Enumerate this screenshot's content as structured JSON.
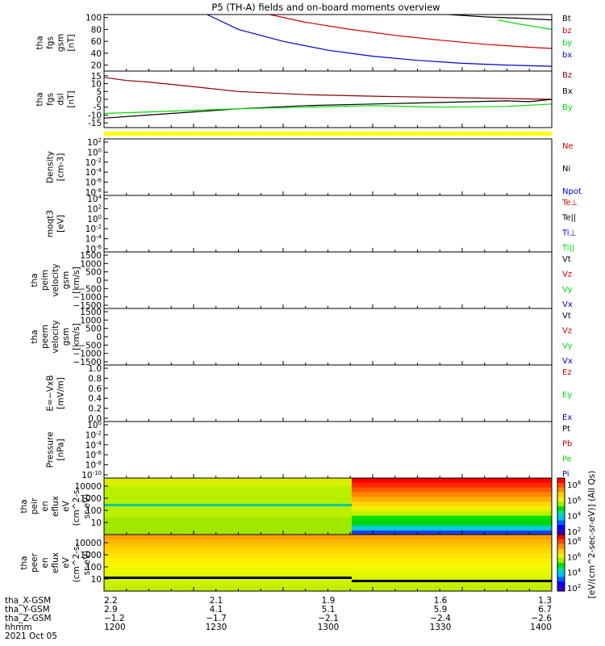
{
  "title": "P5 (TH-A) fields and on-board moments overview",
  "colors": {
    "black": "#000000",
    "red": "#cc0000",
    "green": "#00dd00",
    "blue": "#0000cc",
    "yellow": "#ffff00",
    "darkred": "#8b0000"
  },
  "chart_data": [
    {
      "type": "line",
      "ylabel": [
        "tha",
        "fgs",
        "gsm",
        "[nT]"
      ],
      "ylim": [
        10,
        105
      ],
      "ticks": [
        "20",
        "40",
        "60",
        "80",
        "100"
      ],
      "xlim": [
        0,
        100
      ],
      "series": [
        {
          "name": "Bt",
          "color": "black",
          "x": [
            77,
            85,
            92,
            100
          ],
          "y": [
            105,
            101,
            99,
            96
          ]
        },
        {
          "name": "bz",
          "color": "red",
          "x": [
            37,
            45,
            55,
            65,
            75,
            85,
            95,
            100
          ],
          "y": [
            105,
            92,
            80,
            70,
            62,
            55,
            50,
            48
          ]
        },
        {
          "name": "by",
          "color": "green",
          "x": [
            88,
            92,
            96,
            100
          ],
          "y": [
            96,
            90,
            85,
            80
          ]
        },
        {
          "name": "bx",
          "color": "blue",
          "x": [
            23,
            30,
            40,
            50,
            60,
            70,
            80,
            90,
            100
          ],
          "y": [
            105,
            80,
            60,
            45,
            35,
            28,
            23,
            20,
            18
          ]
        }
      ]
    },
    {
      "type": "line",
      "ylabel": [
        "tha",
        "fgs",
        "dsl",
        "[nT]"
      ],
      "ylim": [
        -18,
        18
      ],
      "ticks": [
        "15",
        "10",
        "5",
        "0",
        "-5",
        "-10",
        "-15"
      ],
      "xlim": [
        0,
        100
      ],
      "series": [
        {
          "name": "Bz",
          "color": "darkred",
          "x": [
            0,
            5,
            10,
            20,
            30,
            45,
            60,
            80,
            90,
            100
          ],
          "y": [
            14,
            12,
            11,
            8,
            5,
            3,
            2,
            1,
            0.5,
            0
          ]
        },
        {
          "name": "Bx",
          "color": "black",
          "x": [
            0,
            10,
            20,
            30,
            45,
            60,
            75,
            90,
            95,
            100
          ],
          "y": [
            -12,
            -10,
            -8,
            -6,
            -4,
            -3,
            -2,
            -1,
            -1.5,
            0
          ]
        },
        {
          "name": "By",
          "color": "green",
          "x": [
            0,
            10,
            20,
            30,
            45,
            60,
            75,
            90,
            100
          ],
          "y": [
            -9,
            -8,
            -7,
            -6,
            -5,
            -4,
            -5,
            -4.5,
            -3
          ]
        }
      ]
    },
    {
      "type": "line",
      "ylabel": [
        "Density",
        "[cm-3]"
      ],
      "ticks": [
        "10^2",
        "10^0",
        "10^-2",
        "10^-4",
        "10^-6",
        "10^-8"
      ],
      "legend": [
        {
          "name": "Ne",
          "color": "red"
        },
        {
          "name": "Ni",
          "color": "black"
        },
        {
          "name": "Npot",
          "color": "blue"
        }
      ]
    },
    {
      "type": "line",
      "ylabel": [
        "moqt3",
        "[eV]"
      ],
      "ticks": [
        "10^4",
        "10^2",
        "10^0",
        "10^-2",
        "10^-4",
        "10^-6"
      ],
      "legend": [
        {
          "name": "Te⊥",
          "color": "red"
        },
        {
          "name": "Te||",
          "color": "black"
        },
        {
          "name": "Ti⊥",
          "color": "blue"
        },
        {
          "name": "Ti||",
          "color": "green"
        }
      ]
    },
    {
      "type": "line",
      "ylabel": [
        "tha",
        "peim",
        "velocity",
        "gsm",
        "[km/s]"
      ],
      "ticks": [
        "1500",
        "1000",
        "500",
        "0",
        "−500",
        "−1000",
        "−1500"
      ],
      "legend": [
        {
          "name": "Vt",
          "color": "black"
        },
        {
          "name": "Vz",
          "color": "red"
        },
        {
          "name": "Vy",
          "color": "green"
        },
        {
          "name": "Vx",
          "color": "blue"
        }
      ]
    },
    {
      "type": "line",
      "ylabel": [
        "tha",
        "peem",
        "velocity",
        "gsm",
        "[km/s]"
      ],
      "ticks": [
        "1500",
        "1000",
        "500",
        "0",
        "−500",
        "−1000",
        "−1500"
      ],
      "legend": [
        {
          "name": "Vt",
          "color": "black"
        },
        {
          "name": "Vz",
          "color": "red"
        },
        {
          "name": "Vy",
          "color": "green"
        },
        {
          "name": "Vx",
          "color": "blue"
        }
      ]
    },
    {
      "type": "line",
      "ylabel": [
        "E=−VxB",
        "[mV/m]"
      ],
      "ticks": [
        "1.0",
        "0.8",
        "0.6",
        "0.4",
        "0.2",
        "0.0"
      ],
      "legend": [
        {
          "name": "Ez",
          "color": "red"
        },
        {
          "name": "Ey",
          "color": "green"
        },
        {
          "name": "Ex",
          "color": "blue"
        }
      ]
    },
    {
      "type": "line",
      "ylabel": [
        "Pressure",
        "[nPa]"
      ],
      "ticks": [
        "10^0",
        "10^-2",
        "10^-4",
        "10^-6",
        "10^-8",
        "10^-10"
      ],
      "legend": [
        {
          "name": "Pt",
          "color": "black"
        },
        {
          "name": "Pb",
          "color": "red"
        },
        {
          "name": "Pe",
          "color": "green"
        },
        {
          "name": "Pi",
          "color": "blue"
        }
      ]
    },
    {
      "type": "heatmap",
      "ylabel": [
        "tha",
        "peir",
        "en",
        "eflux",
        "eV",
        "(cm^2-s-",
        "sr-eV)"
      ],
      "ticks": [
        "10000",
        "1000",
        "100",
        "10"
      ]
    },
    {
      "type": "heatmap",
      "ylabel": [
        "tha",
        "peer",
        "en",
        "eflux",
        "eV",
        "(cm^2-s-",
        "sr-eV)"
      ],
      "ticks": [
        "10000",
        "1000",
        "100",
        "10"
      ]
    }
  ],
  "colorbar": {
    "label": "[eV/(cm^2-sec-sr-eV)] (All Qs)",
    "top_ticks": [
      "10^8",
      "10^6",
      "10^4",
      "10^2"
    ],
    "bottom_ticks": [
      "10^8",
      "10^6",
      "10^4",
      "10^2"
    ]
  },
  "x_axis": {
    "row_labels": [
      "tha_X-GSM",
      "tha_Y-GSM",
      "tha_Z-GSM",
      "hhmm",
      "2021 Oct 05"
    ],
    "columns": [
      [
        "2.2",
        "2.9",
        "−1.2",
        "1200"
      ],
      [
        "2.1",
        "4.1",
        "−1.7",
        "1230"
      ],
      [
        "1.9",
        "5.1",
        "−2.1",
        "1300"
      ],
      [
        "1.6",
        "5.9",
        "−2.4",
        "1330"
      ],
      [
        "1.3",
        "6.7",
        "−2.6",
        "1400"
      ]
    ]
  }
}
